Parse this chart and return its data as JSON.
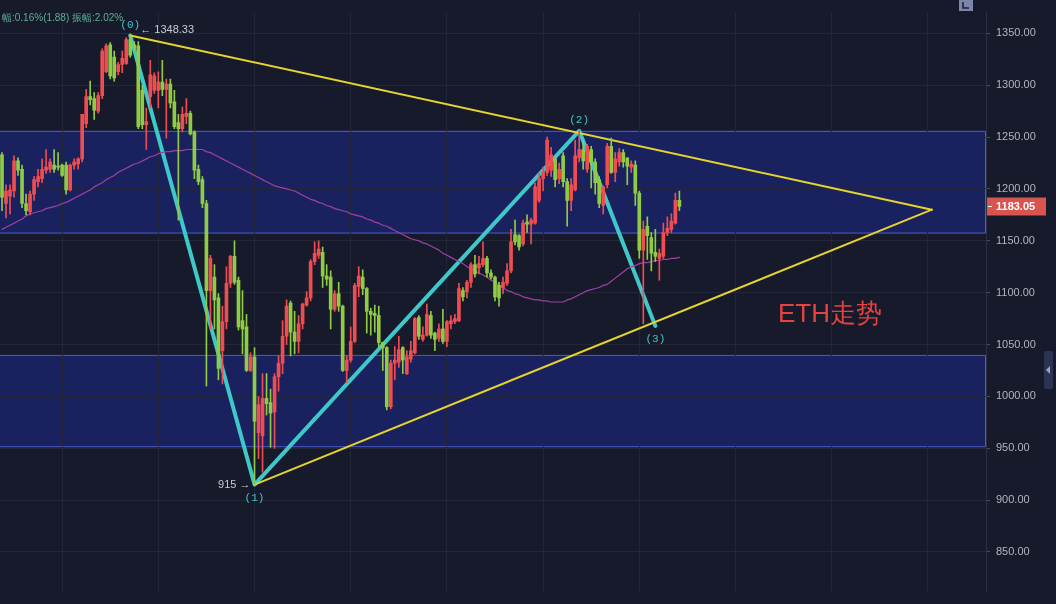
{
  "chart_data": {
    "type": "candlestick",
    "title": "ETH走势",
    "subtitle": "幅:0.16%(1.88) 振幅:2.02%",
    "categories": [
      null,
      null,
      null,
      null,
      null,
      null,
      null,
      null,
      null,
      null,
      null,
      null,
      null,
      null,
      null,
      null,
      null,
      null,
      null,
      null,
      null,
      null,
      null,
      null,
      null,
      null,
      null,
      null,
      null,
      null,
      null,
      null,
      null,
      null,
      null,
      null,
      null,
      null,
      null,
      null,
      null,
      null,
      null,
      null,
      null,
      null,
      null,
      null,
      null,
      null,
      null,
      null,
      null,
      null,
      null,
      null,
      null,
      null,
      null,
      null,
      null,
      null,
      null,
      null,
      null,
      null,
      null,
      null,
      null,
      null,
      null,
      null,
      null,
      null,
      null,
      null,
      null,
      null,
      null,
      null,
      null,
      null,
      null,
      null,
      null,
      null,
      null,
      null,
      null,
      null,
      null,
      null,
      null,
      null,
      null,
      null,
      null,
      null,
      null,
      null,
      null,
      null,
      null,
      null,
      null,
      null,
      null,
      null,
      null,
      null,
      null,
      null,
      null,
      null,
      null,
      null,
      null,
      null,
      null,
      null,
      null,
      null,
      null,
      null,
      null,
      null,
      null,
      null,
      null,
      null,
      null,
      null,
      null,
      null,
      null,
      null,
      null,
      null,
      null,
      null,
      null,
      null,
      null,
      null,
      null,
      null,
      null,
      null,
      null,
      null,
      null,
      null,
      null,
      null,
      null,
      null,
      null,
      null,
      null,
      null,
      null,
      null,
      null,
      null,
      null,
      null,
      null,
      null,
      null,
      null,
      null,
      null,
      null,
      null,
      null,
      null,
      null,
      null,
      null,
      null,
      null,
      null,
      null,
      null,
      null,
      null,
      null,
      null,
      null,
      null,
      null,
      null,
      null,
      null,
      null,
      null,
      null,
      null,
      null,
      null,
      null,
      null,
      null,
      null,
      null,
      null,
      null,
      null,
      null,
      null,
      null,
      null,
      null,
      null,
      null,
      null,
      null,
      null,
      null,
      null,
      null,
      null,
      null,
      null,
      null,
      null,
      null,
      null,
      null,
      null,
      null,
      null,
      null,
      null,
      null,
      null,
      null,
      null,
      null,
      null,
      null,
      null,
      null,
      null,
      null,
      null
    ],
    "ohlc": [
      [
        1233,
        1235,
        1179,
        1192
      ],
      [
        1186,
        1204,
        1172,
        1198
      ],
      [
        1193,
        1204,
        1176,
        1199
      ],
      [
        1198,
        1232,
        1192,
        1227
      ],
      [
        1227,
        1230,
        1213,
        1218
      ],
      [
        1219,
        1223,
        1182,
        1186
      ],
      [
        1186,
        1195,
        1175,
        1179
      ],
      [
        1178,
        1198,
        1175,
        1195
      ],
      [
        1195,
        1212,
        1189,
        1209
      ],
      [
        1207,
        1219,
        1202,
        1212
      ],
      [
        1210,
        1229,
        1206,
        1219
      ],
      [
        1218,
        1238,
        1215,
        1221
      ],
      [
        1219,
        1229,
        1216,
        1226
      ],
      [
        1223,
        1238,
        1216,
        1219
      ],
      [
        1222,
        1235,
        1218,
        1221
      ],
      [
        1223,
        1224,
        1212,
        1213
      ],
      [
        1223,
        1226,
        1195,
        1199
      ],
      [
        1199,
        1224,
        1198,
        1223
      ],
      [
        1223,
        1229,
        1219,
        1226
      ],
      [
        1224,
        1230,
        1219,
        1229
      ],
      [
        1229,
        1272,
        1226,
        1272
      ],
      [
        1263,
        1296,
        1259,
        1289
      ],
      [
        1289,
        1304,
        1281,
        1286
      ],
      [
        1287,
        1293,
        1267,
        1276
      ],
      [
        1275,
        1293,
        1273,
        1290
      ],
      [
        1290,
        1335,
        1287,
        1333
      ],
      [
        1313,
        1340,
        1312,
        1338
      ],
      [
        1339,
        1341,
        1306,
        1309
      ],
      [
        1327,
        1333,
        1304,
        1307
      ],
      [
        1313,
        1322,
        1310,
        1320
      ],
      [
        1320,
        1333,
        1312,
        1326
      ],
      [
        1321,
        1346,
        1320,
        1344
      ],
      [
        1344,
        1348.33,
        1327,
        1329
      ],
      [
        1339,
        1342,
        1334,
        1336
      ],
      [
        1338,
        1342,
        1258,
        1260
      ],
      [
        1295,
        1300,
        1258,
        1262
      ],
      [
        1262,
        1278,
        1238,
        1265
      ],
      [
        1289,
        1324,
        1278,
        1310
      ],
      [
        1295,
        1312,
        1292,
        1309
      ],
      [
        1295,
        1313,
        1278,
        1303
      ],
      [
        1303,
        1324,
        1290,
        1296
      ],
      [
        1296,
        1306,
        1249,
        1301
      ],
      [
        1301,
        1306,
        1278,
        1283
      ],
      [
        1284,
        1295,
        1258,
        1260
      ],
      [
        1264,
        1272,
        1170,
        1258
      ],
      [
        1258,
        1279,
        1255,
        1272
      ],
      [
        1270,
        1287,
        1263,
        1273
      ],
      [
        1273,
        1275,
        1252,
        1253
      ],
      [
        1255,
        1256,
        1210,
        1218
      ],
      [
        1219,
        1223,
        1204,
        1207
      ],
      [
        1209,
        1212,
        1182,
        1186
      ],
      [
        1186,
        1189,
        1010,
        1102
      ],
      [
        1102,
        1136,
        1065,
        1133
      ],
      [
        1115,
        1127,
        1065,
        1093
      ],
      [
        1095,
        1099,
        1016,
        1027
      ],
      [
        1044,
        1087,
        1012,
        1072
      ],
      [
        1072,
        1125,
        1065,
        1109
      ],
      [
        1109,
        1136,
        1105,
        1135
      ],
      [
        1135,
        1150,
        1108,
        1110
      ],
      [
        1112,
        1115,
        1064,
        1067
      ],
      [
        1073,
        1102,
        1041,
        1065
      ],
      [
        1067,
        1079,
        1024,
        1025
      ],
      [
        1025,
        1042,
        1024,
        1038
      ],
      [
        1038,
        1047,
        915,
        976
      ],
      [
        965,
        1000,
        940,
        992
      ],
      [
        962,
        1022,
        927,
        998
      ],
      [
        998,
        1022,
        982,
        993
      ],
      [
        994,
        1007,
        951,
        984
      ],
      [
        985,
        1022,
        950,
        1019
      ],
      [
        1019,
        1039,
        1005,
        1032
      ],
      [
        1032,
        1073,
        1022,
        1058
      ],
      [
        1058,
        1093,
        1050,
        1087
      ],
      [
        1090,
        1092,
        1039,
        1062
      ],
      [
        1062,
        1082,
        1041,
        1053
      ],
      [
        1053,
        1078,
        1042,
        1070
      ],
      [
        1070,
        1090,
        1065,
        1089
      ],
      [
        1088,
        1101,
        1087,
        1095
      ],
      [
        1095,
        1132,
        1092,
        1130
      ],
      [
        1130,
        1149,
        1127,
        1138
      ],
      [
        1136,
        1150,
        1133,
        1142
      ],
      [
        1139,
        1144,
        1105,
        1116
      ],
      [
        1116,
        1127,
        1107,
        1113
      ],
      [
        1115,
        1121,
        1065,
        1084
      ],
      [
        1084,
        1102,
        1082,
        1099
      ],
      [
        1099,
        1110,
        1082,
        1087
      ],
      [
        1087,
        1088,
        1024,
        1025
      ],
      [
        1025,
        1039,
        1013,
        1035
      ],
      [
        1035,
        1067,
        1033,
        1053
      ],
      [
        1053,
        1109,
        1052,
        1107
      ],
      [
        1106,
        1125,
        1096,
        1116
      ],
      [
        1115,
        1122,
        1098,
        1104
      ],
      [
        1104,
        1105,
        1061,
        1082
      ],
      [
        1082,
        1085,
        1059,
        1079
      ],
      [
        1080,
        1088,
        1062,
        1078
      ],
      [
        1078,
        1087,
        1048,
        1052
      ],
      [
        1052,
        1052,
        1025,
        1047
      ],
      [
        1047,
        1048,
        987,
        990
      ],
      [
        990,
        1035,
        988,
        1032
      ],
      [
        1032,
        1048,
        1016,
        1035
      ],
      [
        1033,
        1058,
        1028,
        1045
      ],
      [
        1047,
        1048,
        1022,
        1035
      ],
      [
        1022,
        1044,
        1021,
        1038
      ],
      [
        1036,
        1053,
        1033,
        1044
      ],
      [
        1042,
        1076,
        1041,
        1075
      ],
      [
        1076,
        1078,
        1055,
        1058
      ],
      [
        1055,
        1067,
        1053,
        1059
      ],
      [
        1059,
        1089,
        1058,
        1079
      ],
      [
        1078,
        1082,
        1056,
        1059
      ],
      [
        1061,
        1062,
        1044,
        1055
      ],
      [
        1056,
        1070,
        1053,
        1065
      ],
      [
        1065,
        1084,
        1051,
        1053
      ],
      [
        1053,
        1073,
        1048,
        1072
      ],
      [
        1070,
        1078,
        1065,
        1073
      ],
      [
        1072,
        1079,
        1070,
        1075
      ],
      [
        1073,
        1109,
        1072,
        1104
      ],
      [
        1102,
        1105,
        1092,
        1096
      ],
      [
        1101,
        1112,
        1095,
        1110
      ],
      [
        1110,
        1129,
        1105,
        1127
      ],
      [
        1127,
        1136,
        1115,
        1118
      ],
      [
        1124,
        1135,
        1118,
        1128
      ],
      [
        1127,
        1149,
        1125,
        1133
      ],
      [
        1133,
        1135,
        1115,
        1119
      ],
      [
        1119,
        1122,
        1113,
        1115
      ],
      [
        1115,
        1116,
        1092,
        1096
      ],
      [
        1107,
        1110,
        1087,
        1095
      ],
      [
        1105,
        1115,
        1099,
        1110
      ],
      [
        1109,
        1128,
        1107,
        1121
      ],
      [
        1121,
        1161,
        1119,
        1149
      ],
      [
        1156,
        1170,
        1146,
        1149
      ],
      [
        1155,
        1156,
        1141,
        1144
      ],
      [
        1147,
        1170,
        1145,
        1167
      ],
      [
        1168,
        1175,
        1158,
        1166
      ],
      [
        1166,
        1172,
        1147,
        1170
      ],
      [
        1167,
        1206,
        1166,
        1202
      ],
      [
        1189,
        1215,
        1187,
        1210
      ],
      [
        1210,
        1221,
        1198,
        1216
      ],
      [
        1216,
        1250,
        1213,
        1247
      ],
      [
        1218,
        1240,
        1212,
        1233
      ],
      [
        1229,
        1230,
        1202,
        1209
      ],
      [
        1210,
        1225,
        1205,
        1219
      ],
      [
        1232,
        1235,
        1202,
        1207
      ],
      [
        1207,
        1210,
        1164,
        1189
      ],
      [
        1189,
        1210,
        1179,
        1204
      ],
      [
        1199,
        1247,
        1198,
        1232
      ],
      [
        1230,
        1256,
        1226,
        1238
      ],
      [
        1238,
        1246,
        1219,
        1227
      ],
      [
        1219,
        1243,
        1216,
        1241
      ],
      [
        1238,
        1241,
        1201,
        1226
      ],
      [
        1226,
        1229,
        1195,
        1206
      ],
      [
        1209,
        1212,
        1182,
        1186
      ],
      [
        1184,
        1203,
        1176,
        1202
      ],
      [
        1204,
        1244,
        1201,
        1241
      ],
      [
        1241,
        1249,
        1215,
        1216
      ],
      [
        1216,
        1235,
        1207,
        1229
      ],
      [
        1226,
        1239,
        1222,
        1235
      ],
      [
        1235,
        1238,
        1221,
        1226
      ],
      [
        1230,
        1230,
        1204,
        1222
      ],
      [
        1221,
        1227,
        1216,
        1224
      ],
      [
        1223,
        1227,
        1184,
        1196
      ],
      [
        1196,
        1198,
        1133,
        1141
      ],
      [
        1141,
        1169,
        1070,
        1161
      ],
      [
        1164,
        1173,
        1132,
        1155
      ],
      [
        1153,
        1158,
        1121,
        1138
      ],
      [
        1139,
        1161,
        1130,
        1135
      ],
      [
        1133,
        1142,
        1112,
        1138
      ],
      [
        1135,
        1167,
        1133,
        1158
      ],
      [
        1158,
        1173,
        1155,
        1162
      ],
      [
        1161,
        1176,
        1158,
        1169
      ],
      [
        1167,
        1196,
        1166,
        1189
      ],
      [
        1189,
        1198,
        1179,
        1183.05
      ],
      null,
      null,
      null,
      null,
      null,
      null,
      null,
      null,
      null,
      null,
      null,
      null,
      null,
      null,
      null,
      null,
      null,
      null,
      null,
      null,
      null,
      null,
      null,
      null,
      null,
      null,
      null,
      null,
      null,
      null,
      null,
      null,
      null,
      null,
      null,
      null,
      null,
      null,
      null,
      null,
      null,
      null,
      null,
      null,
      null,
      null,
      null,
      null,
      null,
      null,
      null,
      null,
      null,
      null,
      null,
      null,
      null,
      null,
      null,
      null,
      null,
      null,
      null,
      null,
      null,
      null,
      null,
      null,
      null,
      null,
      null,
      null,
      null,
      null,
      null,
      null
    ],
    "colors": [
      "#8fcb44",
      "#f04d52",
      "#f04d52",
      "#f04d52",
      "#8fcb44",
      "#8fcb44",
      "#8fcb44",
      "#f04d52",
      "#f04d52",
      "#f04d52",
      "#f04d52",
      "#f04d52",
      "#f04d52",
      "#8fcb44",
      "#8fcb44",
      "#8fcb44",
      "#8fcb44",
      "#f04d52",
      "#f04d52",
      "#f04d52",
      "#f04d52",
      "#f04d52",
      "#8fcb44",
      "#8fcb44",
      "#f04d52",
      "#f04d52",
      "#f04d52",
      "#8fcb44",
      "#8fcb44",
      "#f04d52",
      "#f04d52",
      "#f04d52",
      "#8fcb44",
      "#8fcb44",
      "#8fcb44",
      "#8fcb44",
      "#f04d52",
      "#f04d52",
      "#f04d52",
      "#f04d52",
      "#8fcb44",
      "#f04d52",
      "#8fcb44",
      "#8fcb44",
      "#8fcb44",
      "#f04d52",
      "#f04d52",
      "#8fcb44",
      "#8fcb44",
      "#8fcb44",
      "#8fcb44",
      "#8fcb44",
      "#f04d52",
      "#8fcb44",
      "#8fcb44",
      "#f04d52",
      "#f04d52",
      "#f04d52",
      "#8fcb44",
      "#8fcb44",
      "#8fcb44",
      "#8fcb44",
      "#f04d52",
      "#8fcb44",
      "#f04d52",
      "#f04d52",
      "#8fcb44",
      "#8fcb44",
      "#f04d52",
      "#f04d52",
      "#f04d52",
      "#f04d52",
      "#8fcb44",
      "#8fcb44",
      "#f04d52",
      "#f04d52",
      "#f04d52",
      "#f04d52",
      "#f04d52",
      "#f04d52",
      "#8fcb44",
      "#8fcb44",
      "#8fcb44",
      "#f04d52",
      "#8fcb44",
      "#8fcb44",
      "#f04d52",
      "#f04d52",
      "#f04d52",
      "#f04d52",
      "#8fcb44",
      "#8fcb44",
      "#8fcb44",
      "#8fcb44",
      "#8fcb44",
      "#8fcb44",
      "#8fcb44",
      "#f04d52",
      "#f04d52",
      "#f04d52",
      "#8fcb44",
      "#f04d52",
      "#f04d52",
      "#f04d52",
      "#8fcb44",
      "#f04d52",
      "#f04d52",
      "#8fcb44",
      "#8fcb44",
      "#f04d52",
      "#8fcb44",
      "#f04d52",
      "#f04d52",
      "#f04d52",
      "#f04d52",
      "#8fcb44",
      "#f04d52",
      "#f04d52",
      "#8fcb44",
      "#f04d52",
      "#f04d52",
      "#8fcb44",
      "#8fcb44",
      "#8fcb44",
      "#8fcb44",
      "#f04d52",
      "#f04d52",
      "#f04d52",
      "#8fcb44",
      "#8fcb44",
      "#f04d52",
      "#8fcb44",
      "#f04d52",
      "#f04d52",
      "#f04d52",
      "#f04d52",
      "#f04d52",
      "#f04d52",
      "#8fcb44",
      "#f04d52",
      "#8fcb44",
      "#8fcb44",
      "#f04d52",
      "#f04d52",
      "#f04d52",
      "#8fcb44",
      "#f04d52",
      "#8fcb44",
      "#8fcb44",
      "#8fcb44",
      "#f04d52",
      "#f04d52",
      "#8fcb44",
      "#f04d52",
      "#f04d52",
      "#8fcb44",
      "#8fcb44",
      "#f04d52",
      "#8fcb44",
      "#8fcb44",
      "#f04d52",
      "#8fcb44",
      "#8fcb44",
      "#8fcb44",
      "#f04d52",
      "#f04d52",
      "#f04d52",
      "#f04d52",
      "#f04d52",
      "#8fcb44",
      null,
      null,
      null,
      null,
      null,
      null,
      null,
      null,
      null,
      null,
      null,
      null,
      null,
      null,
      null,
      null,
      null,
      null,
      null,
      null,
      null,
      null,
      null,
      null,
      null,
      null,
      null,
      null,
      null,
      null,
      null,
      null,
      null,
      null,
      null,
      null,
      null,
      null,
      null,
      null,
      null,
      null,
      null,
      null,
      null,
      null,
      null,
      null,
      null,
      null,
      null,
      null,
      null,
      null,
      null,
      null,
      null,
      null,
      null,
      null,
      null,
      null,
      null,
      null,
      null,
      null,
      null,
      null,
      null,
      null,
      null,
      null,
      null,
      null,
      null,
      null
    ],
    "series": [
      {
        "type": "line",
        "color": "#a040a6",
        "values": [
          1161,
          1163,
          1165,
          1167,
          1169,
          1171,
          1174,
          1176,
          1177,
          1178,
          1179,
          1181,
          1182,
          1183,
          1184,
          1186,
          1187,
          1189,
          1191,
          1193,
          1195,
          1197,
          1199,
          1202,
          1204,
          1206,
          1209,
          1211,
          1213,
          1216,
          1218,
          1220,
          1222,
          1224,
          1225,
          1227,
          1229,
          1231,
          1232,
          1234,
          1235,
          1236,
          1236,
          1237,
          1237,
          1237,
          1238,
          1238,
          1238,
          1238,
          1238,
          1236,
          1235,
          1233,
          1231,
          1229,
          1227,
          1225,
          1223,
          1221,
          1219,
          1217,
          1215,
          1213,
          1211,
          1209,
          1207,
          1205,
          1203,
          1202,
          1201,
          1200,
          1199,
          1198,
          1196,
          1194,
          1192,
          1190,
          1189,
          1187,
          1186,
          1184,
          1183,
          1181,
          1180,
          1179,
          1178,
          1176,
          1175,
          1174,
          1173,
          1171,
          1170,
          1168,
          1167,
          1165,
          1164,
          1162,
          1160,
          1158,
          1156,
          1154,
          1152,
          1151,
          1150,
          1148,
          1147,
          1145,
          1143,
          1141,
          1138,
          1136,
          1134,
          1132,
          1130,
          1128,
          1125,
          1123,
          1121,
          1119,
          1117,
          1115,
          1112,
          1110,
          1107,
          1105,
          1102,
          1101,
          1099,
          1098,
          1096,
          1095,
          1094,
          1093,
          1093,
          1092,
          1092,
          1091,
          1091,
          1091,
          1091,
          1093,
          1094,
          1096,
          1098,
          1100,
          1102,
          1103,
          1104,
          1105,
          1107,
          1108,
          1111,
          1114,
          1117,
          1120,
          1123,
          1125,
          1126,
          1128,
          1129,
          1129,
          1130,
          1131,
          1131,
          1132,
          1132,
          1133,
          1133,
          1134,
          null,
          null,
          null,
          null,
          null,
          null,
          null,
          null,
          null,
          null,
          null,
          null,
          null,
          null,
          null,
          null,
          null,
          null,
          null,
          null,
          null,
          null,
          null,
          null,
          null,
          null,
          null,
          null,
          null,
          null,
          null,
          null,
          null,
          null,
          null,
          null,
          null,
          null,
          null,
          null,
          null,
          null,
          null,
          null,
          null,
          null,
          null,
          null,
          null,
          null,
          null,
          null,
          null,
          null,
          null,
          null,
          null,
          null,
          null,
          null,
          null,
          null,
          null,
          null,
          null,
          null,
          null,
          null,
          null,
          null,
          null,
          null,
          null,
          null,
          null,
          null
        ]
      },
      {
        "type": "line",
        "color": "#e6d42c",
        "values": [
          null,
          null,
          null,
          null,
          null,
          null,
          null,
          null,
          null,
          null,
          null,
          null,
          null,
          null,
          null,
          null,
          null,
          null,
          null,
          null,
          null,
          null,
          null,
          null,
          null,
          null,
          null,
          null,
          null,
          null,
          null,
          null,
          1348,
          null,
          null,
          null,
          null,
          null,
          null,
          null,
          null,
          null,
          null,
          null,
          null,
          null,
          null,
          null,
          null,
          null,
          null,
          null,
          null,
          null,
          null,
          null,
          null,
          null,
          null,
          null,
          null,
          null,
          null,
          null,
          null,
          null,
          null,
          null,
          null,
          null,
          null,
          null,
          null,
          null,
          null,
          null,
          null,
          null,
          null,
          null,
          null,
          null,
          null,
          null,
          null,
          null,
          null,
          null,
          null,
          null,
          null,
          null,
          null,
          null,
          null,
          null,
          null,
          null,
          null,
          null,
          null,
          null,
          null,
          null,
          null,
          null,
          null,
          null,
          null,
          null,
          null,
          null,
          null,
          null,
          null,
          null,
          null,
          null,
          null,
          null,
          null,
          null,
          null,
          null,
          null,
          null,
          null,
          null,
          null,
          null,
          null,
          null,
          null,
          null,
          null,
          null,
          null,
          null,
          null,
          null,
          null,
          null,
          null,
          null,
          null,
          null,
          null,
          null,
          null,
          null,
          null,
          null,
          null,
          null,
          null,
          null,
          null,
          null,
          null,
          null,
          null,
          null,
          null,
          null,
          null,
          null,
          null,
          null,
          null,
          null,
          null,
          null,
          null,
          null,
          null,
          null,
          null,
          null,
          null,
          null,
          null,
          null,
          null,
          null,
          null,
          null,
          null,
          null,
          null,
          null,
          null,
          null,
          null,
          null,
          null,
          null,
          null,
          null,
          null,
          null,
          null,
          null,
          null,
          null,
          null,
          null,
          null,
          null,
          null,
          null,
          null,
          null,
          null,
          null,
          null,
          null,
          null,
          null,
          null,
          null,
          null,
          null,
          null,
          null,
          null,
          null,
          null,
          null,
          null,
          null,
          null,
          null,
          1180,
          null,
          null,
          null,
          null,
          null,
          null,
          null,
          null,
          null,
          null,
          null,
          null,
          null
        ]
      },
      {
        "type": "line",
        "color": "#e6d42c",
        "values": [
          null,
          null,
          null,
          null,
          null,
          null,
          null,
          null,
          null,
          null,
          null,
          null,
          null,
          null,
          null,
          null,
          null,
          null,
          null,
          null,
          null,
          null,
          null,
          null,
          null,
          null,
          null,
          null,
          null,
          null,
          null,
          null,
          null,
          null,
          null,
          null,
          null,
          null,
          null,
          null,
          null,
          null,
          null,
          null,
          null,
          null,
          null,
          null,
          null,
          null,
          null,
          null,
          null,
          null,
          null,
          null,
          null,
          null,
          null,
          null,
          null,
          null,
          null,
          915,
          null,
          null,
          null,
          null,
          null,
          null,
          null,
          null,
          null,
          null,
          null,
          null,
          null,
          null,
          null,
          null,
          null,
          null,
          null,
          null,
          null,
          null,
          null,
          null,
          null,
          null,
          null,
          null,
          null,
          null,
          null,
          null,
          null,
          null,
          null,
          null,
          null,
          null,
          null,
          null,
          null,
          null,
          null,
          null,
          null,
          null,
          null,
          null,
          null,
          null,
          null,
          null,
          null,
          null,
          null,
          null,
          null,
          null,
          null,
          null,
          null,
          null,
          null,
          null,
          null,
          null,
          null,
          null,
          null,
          null,
          null,
          null,
          null,
          null,
          null,
          null,
          null,
          null,
          null,
          null,
          null,
          null,
          null,
          null,
          null,
          null,
          null,
          null,
          null,
          null,
          null,
          null,
          null,
          null,
          null,
          null,
          null,
          null,
          null,
          null,
          null,
          null,
          null,
          null,
          null,
          null,
          null,
          null,
          null,
          null,
          null,
          null,
          null,
          null,
          null,
          null,
          null,
          null,
          null,
          null,
          null,
          null,
          null,
          null,
          null,
          null,
          null,
          null,
          null,
          null,
          null,
          null,
          null,
          null,
          null,
          null,
          null,
          null,
          null,
          null,
          null,
          null,
          null,
          null,
          null,
          null,
          null,
          null,
          null,
          null,
          null,
          null,
          null,
          null,
          null,
          null,
          null,
          null,
          null,
          null,
          null,
          null,
          null,
          null,
          null,
          null,
          null,
          null,
          1180,
          null,
          null,
          null,
          null,
          null,
          null,
          null,
          null,
          null,
          null,
          null,
          null,
          null
        ]
      },
      {
        "type": "line",
        "color": "#3fc8c9",
        "values": [
          null,
          null,
          null,
          null,
          null,
          null,
          null,
          null,
          null,
          null,
          null,
          null,
          null,
          null,
          null,
          null,
          null,
          null,
          null,
          null,
          null,
          null,
          null,
          null,
          null,
          null,
          null,
          null,
          null,
          null,
          null,
          null,
          1348,
          null,
          null,
          null,
          null,
          null,
          null,
          null,
          null,
          null,
          null,
          null,
          null,
          null,
          null,
          null,
          null,
          null,
          null,
          null,
          null,
          null,
          null,
          null,
          null,
          null,
          null,
          null,
          null,
          null,
          null,
          915,
          null,
          null,
          null,
          null,
          null,
          null,
          null,
          null,
          null,
          null,
          null,
          null,
          null,
          null,
          null,
          null,
          null,
          null,
          null,
          null,
          null,
          null,
          null,
          null,
          null,
          null,
          null,
          null,
          null,
          null,
          null,
          null,
          null,
          null,
          null,
          null,
          null,
          null,
          null,
          null,
          null,
          null,
          null,
          null,
          null,
          null,
          null,
          null,
          null,
          null,
          null,
          null,
          null,
          null,
          null,
          null,
          null,
          null,
          null,
          null,
          null,
          null,
          null,
          null,
          null,
          null,
          null,
          null,
          null,
          null,
          null,
          null,
          null,
          null,
          null,
          null,
          null,
          null,
          null,
          null,
          1256,
          null,
          null,
          null,
          null,
          null,
          null,
          null,
          null,
          null,
          null,
          null,
          null,
          null,
          null,
          null,
          null,
          null,
          null,
          1068,
          null,
          null,
          null,
          null,
          null,
          null,
          null,
          null,
          null,
          null,
          null,
          null,
          null,
          null,
          null,
          null,
          null,
          null,
          null,
          null,
          null,
          null,
          null,
          null,
          null,
          null,
          null,
          null,
          null,
          null,
          null,
          null,
          null,
          null,
          null,
          null,
          null,
          null,
          null,
          null,
          null,
          null,
          null,
          null,
          null,
          null,
          null,
          null,
          null,
          null,
          null,
          null,
          null,
          null,
          null,
          null,
          null,
          null,
          null,
          null,
          null,
          null,
          null,
          null,
          null,
          null,
          null,
          null,
          null,
          null,
          null,
          null,
          null,
          null,
          null,
          null,
          null,
          null,
          null,
          null,
          null,
          null
        ]
      }
    ],
    "ylim": [
      812,
      1370
    ],
    "yticks": [
      {
        "value": 850,
        "label": "850.00"
      },
      {
        "value": 900,
        "label": "900.00"
      },
      {
        "value": 950,
        "label": "950.00"
      },
      {
        "value": 1000,
        "label": "1000.00"
      },
      {
        "value": 1050,
        "label": "1050.00"
      },
      {
        "value": 1100,
        "label": "1100.00"
      },
      {
        "value": 1150,
        "label": "1150.00"
      },
      {
        "value": 1200,
        "label": "1200.00"
      },
      {
        "value": 1250,
        "label": "1250.00"
      },
      {
        "value": 1300,
        "label": "1300.00"
      },
      {
        "value": 1350,
        "label": "1350.00"
      }
    ],
    "grid": true,
    "tick_labels": "y",
    "marker": "none",
    "bands": [
      {
        "axis": "y",
        "from": 1157,
        "to": 1256,
        "color": "#19225e"
      },
      {
        "axis": "y",
        "from": 951,
        "to": 1040,
        "color": "#19225e"
      }
    ],
    "annotations": [
      {
        "text": "(0)",
        "y": 1348
      },
      "← 1348.33",
      {
        "text": "(1)",
        "y": 915
      },
      "915 →",
      {
        "text": "(2)",
        "y": 1256
      },
      {
        "text": "(3)",
        "y": 1068
      },
      "1183.05"
    ]
  }
}
